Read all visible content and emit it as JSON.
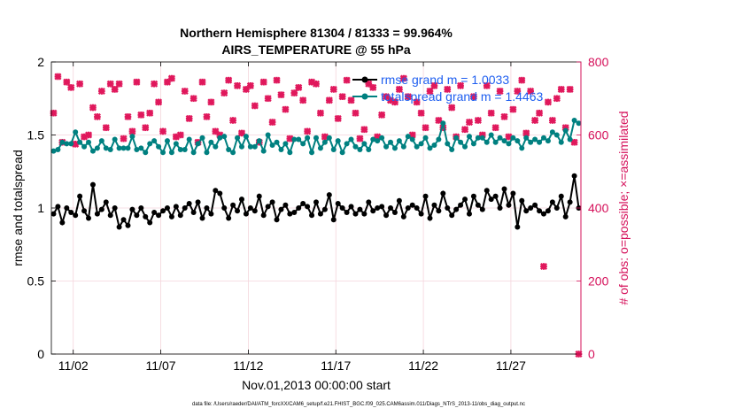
{
  "chart_data": {
    "type": "line",
    "title": "Northern Hemisphere 81304 / 81333 = 99.964%",
    "subtitle": "AIRS_TEMPERATURE @ 55 hPa",
    "xlabel": "Nov.01,2013 00:00:00 start",
    "ylabel": "rmse and totalspread",
    "ylabel_right": "# of obs: o=possible; ×=assimilated",
    "footer": "data file: /Users/raeder/DAI/ATM_forcXX/CAM6_setup/f.e21.FHIST_BGC.f09_025.CAM6assim.011/Diags_NTrS_2013-11/obs_diag_output.nc",
    "x_tick_labels": [
      "11/02",
      "11/07",
      "11/12",
      "11/17",
      "11/22",
      "11/27"
    ],
    "x_ticks": [
      2,
      7,
      12,
      17,
      22,
      27
    ],
    "xlim": [
      0.75,
      31
    ],
    "ylim": [
      0,
      2
    ],
    "y_ticks": [
      0,
      0.5,
      1,
      1.5,
      2
    ],
    "y_tick_labels": [
      "0",
      "0.5",
      "1",
      "1.5",
      "2"
    ],
    "ylim_right": [
      0,
      800
    ],
    "y_ticks_right": [
      0,
      200,
      400,
      600,
      800
    ],
    "y_tick_labels_right": [
      "0",
      "200",
      "400",
      "600",
      "800"
    ],
    "grid": true,
    "legend_position": "top-right",
    "x": [
      0.875,
      1.125,
      1.375,
      1.625,
      1.875,
      2.125,
      2.375,
      2.625,
      2.875,
      3.125,
      3.375,
      3.625,
      3.875,
      4.125,
      4.375,
      4.625,
      4.875,
      5.125,
      5.375,
      5.625,
      5.875,
      6.125,
      6.375,
      6.625,
      6.875,
      7.125,
      7.375,
      7.625,
      7.875,
      8.125,
      8.375,
      8.625,
      8.875,
      9.125,
      9.375,
      9.625,
      9.875,
      10.125,
      10.375,
      10.625,
      10.875,
      11.125,
      11.375,
      11.625,
      11.875,
      12.125,
      12.375,
      12.625,
      12.875,
      13.125,
      13.375,
      13.625,
      13.875,
      14.125,
      14.375,
      14.625,
      14.875,
      15.125,
      15.375,
      15.625,
      15.875,
      16.125,
      16.375,
      16.625,
      16.875,
      17.125,
      17.375,
      17.625,
      17.875,
      18.125,
      18.375,
      18.625,
      18.875,
      19.125,
      19.375,
      19.625,
      19.875,
      20.125,
      20.375,
      20.625,
      20.875,
      21.125,
      21.375,
      21.625,
      21.875,
      22.125,
      22.375,
      22.625,
      22.875,
      23.125,
      23.375,
      23.625,
      23.875,
      24.125,
      24.375,
      24.625,
      24.875,
      25.125,
      25.375,
      25.625,
      25.875,
      26.125,
      26.375,
      26.625,
      26.875,
      27.125,
      27.375,
      27.625,
      27.875,
      28.125,
      28.375,
      28.625,
      28.875,
      29.125,
      29.375,
      29.625,
      29.875,
      30.125,
      30.375,
      30.625,
      30.875
    ],
    "series": [
      {
        "name": "rmse grand m = 1.0033",
        "color": "#000000",
        "axis": "left",
        "marker": "circle",
        "values": [
          0.96,
          1.01,
          0.9,
          1.0,
          0.97,
          0.95,
          1.08,
          0.98,
          0.93,
          1.16,
          0.96,
          0.99,
          1.04,
          0.95,
          1.0,
          0.87,
          0.92,
          0.88,
          0.99,
          0.95,
          1.0,
          0.94,
          0.9,
          0.97,
          0.95,
          0.98,
          1.0,
          0.94,
          1.01,
          0.95,
          1.0,
          1.03,
          0.97,
          1.04,
          0.93,
          1.0,
          0.96,
          1.12,
          1.1,
          1.0,
          0.93,
          1.02,
          0.98,
          1.06,
          0.96,
          1.0,
          0.98,
          1.08,
          0.95,
          1.01,
          1.04,
          0.92,
          0.99,
          1.02,
          0.96,
          0.97,
          1.0,
          1.03,
          1.01,
          0.95,
          1.04,
          0.96,
          0.99,
          1.09,
          0.92,
          1.03,
          1.0,
          0.97,
          1.01,
          0.96,
          0.99,
          0.96,
          1.04,
          0.98,
          1.0,
          1.01,
          0.95,
          1.0,
          0.97,
          1.05,
          0.94,
          1.0,
          1.02,
          1.0,
          0.96,
          1.08,
          0.93,
          1.02,
          0.98,
          1.1,
          1.0,
          0.95,
          0.99,
          1.02,
          1.06,
          0.96,
          1.08,
          1.02,
          0.99,
          1.12,
          1.06,
          1.08,
          1.0,
          1.13,
          1.02,
          1.1,
          0.87,
          1.05,
          0.98,
          1.0,
          1.02,
          0.98,
          0.96,
          0.98,
          1.04,
          1.0,
          1.08,
          0.94,
          1.04,
          1.22,
          1.0
        ]
      },
      {
        "name": "totalspread grand m = 1.4463",
        "color": "#008080",
        "axis": "left",
        "marker": "circle",
        "values": [
          1.39,
          1.4,
          1.45,
          1.44,
          1.44,
          1.52,
          1.45,
          1.42,
          1.45,
          1.39,
          1.41,
          1.46,
          1.41,
          1.4,
          1.47,
          1.41,
          1.41,
          1.41,
          1.49,
          1.4,
          1.41,
          1.38,
          1.44,
          1.46,
          1.42,
          1.38,
          1.46,
          1.38,
          1.44,
          1.4,
          1.4,
          1.47,
          1.38,
          1.44,
          1.48,
          1.38,
          1.45,
          1.42,
          1.48,
          1.49,
          1.4,
          1.38,
          1.48,
          1.42,
          1.49,
          1.42,
          1.42,
          1.46,
          1.39,
          1.5,
          1.43,
          1.45,
          1.4,
          1.44,
          1.38,
          1.47,
          1.47,
          1.44,
          1.48,
          1.38,
          1.48,
          1.41,
          1.45,
          1.48,
          1.4,
          1.46,
          1.38,
          1.44,
          1.47,
          1.42,
          1.4,
          1.44,
          1.4,
          1.47,
          1.46,
          1.48,
          1.42,
          1.45,
          1.41,
          1.46,
          1.42,
          1.49,
          1.47,
          1.42,
          1.44,
          1.48,
          1.41,
          1.43,
          1.47,
          1.58,
          1.44,
          1.4,
          1.48,
          1.45,
          1.42,
          1.49,
          1.44,
          1.48,
          1.48,
          1.45,
          1.5,
          1.45,
          1.48,
          1.46,
          1.44,
          1.48,
          1.46,
          1.41,
          1.48,
          1.45,
          1.47,
          1.45,
          1.48,
          1.46,
          1.52,
          1.5,
          1.45,
          1.53,
          1.47,
          1.6,
          1.58
        ]
      },
      {
        "name": "# of obs",
        "color": "#e0185c",
        "axis": "right",
        "marker": "x",
        "values": [
          660,
          760,
          580,
          745,
          730,
          575,
          740,
          595,
          600,
          675,
          650,
          720,
          620,
          740,
          725,
          740,
          590,
          650,
          610,
          745,
          655,
          620,
          660,
          740,
          690,
          610,
          745,
          755,
          595,
          600,
          720,
          645,
          700,
          580,
          745,
          650,
          690,
          610,
          600,
          715,
          750,
          640,
          735,
          605,
          725,
          735,
          680,
          580,
          745,
          700,
          635,
          750,
          710,
          670,
          590,
          715,
          730,
          695,
          610,
          745,
          740,
          660,
          595,
          695,
          725,
          645,
          705,
          750,
          695,
          660,
          590,
          615,
          740,
          730,
          595,
          655,
          705,
          695,
          690,
          725,
          755,
          705,
          600,
          690,
          660,
          620,
          720,
          735,
          640,
          620,
          725,
          675,
          595,
          735,
          615,
          635,
          705,
          640,
          600,
          735,
          660,
          620,
          720,
          650,
          595,
          670,
          720,
          750,
          605,
          720,
          640,
          660,
          240,
          690,
          640,
          700,
          725,
          620,
          725,
          580,
          0
        ]
      }
    ]
  },
  "legend": {
    "rmse_label": "rmse grand m = 1.0033",
    "spread_label": "totalspread grand m = 1.4463"
  },
  "colors": {
    "rmse": "#000000",
    "spread": "#008080",
    "obs": "#e0185c",
    "right_axis": "#d5105a",
    "legend_text": "#1f5ff0",
    "grid": "#f4d5dc"
  }
}
